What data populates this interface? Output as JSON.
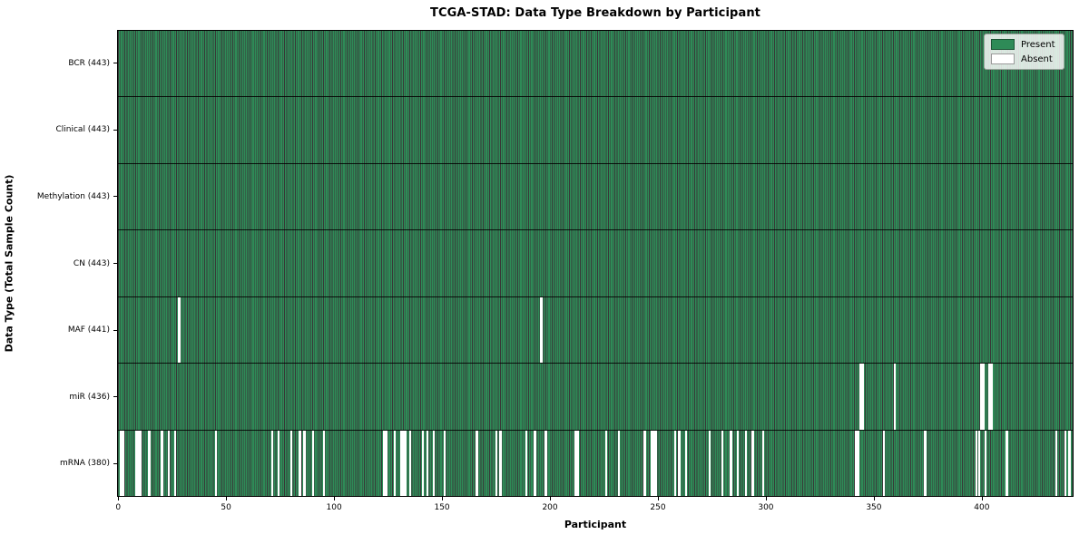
{
  "title": "TCGA-STAD: Data Type Breakdown by Participant",
  "legend": {
    "present_label": "Present",
    "absent_label": "Absent"
  },
  "chart_data": {
    "type": "heatmap",
    "title": "TCGA-STAD: Data Type Breakdown by Participant",
    "xlabel": "Participant",
    "ylabel": "Data Type (Total Sample Count)",
    "n_participants": 443,
    "x_ticks": [
      0,
      50,
      100,
      150,
      200,
      250,
      300,
      350,
      400
    ],
    "grid": false,
    "legend_position": "upper right",
    "legend_entries": [
      {
        "label": "Present",
        "color": "#2e8b57"
      },
      {
        "label": "Absent",
        "color": "#ffffff"
      }
    ],
    "colors": {
      "present": "#2e8b57",
      "absent": "#ffffff",
      "bar_edge": "rgba(0,0,0,0.78)"
    },
    "rows": [
      {
        "name": "BCR",
        "label": "BCR (443)",
        "total": 443,
        "absent": []
      },
      {
        "name": "Clinical",
        "label": "Clinical (443)",
        "total": 443,
        "absent": []
      },
      {
        "name": "Methylation",
        "label": "Methylation (443)",
        "total": 443,
        "absent": []
      },
      {
        "name": "CN",
        "label": "CN (443)",
        "total": 443,
        "absent": []
      },
      {
        "name": "MAF",
        "label": "MAF (441)",
        "total": 441,
        "absent": [
          28,
          196
        ]
      },
      {
        "name": "miR",
        "label": "miR (436)",
        "total": 436,
        "absent": [
          344,
          345,
          360,
          400,
          401,
          404,
          405
        ]
      },
      {
        "name": "mRNA",
        "label": "mRNA (380)",
        "total": 380,
        "absent": [
          1,
          2,
          8,
          9,
          10,
          14,
          20,
          23,
          26,
          45,
          71,
          74,
          80,
          84,
          86,
          90,
          95,
          123,
          124,
          128,
          131,
          132,
          133,
          135,
          141,
          143,
          146,
          151,
          166,
          175,
          177,
          189,
          193,
          198,
          212,
          213,
          226,
          232,
          244,
          247,
          248,
          249,
          258,
          260,
          263,
          274,
          280,
          284,
          287,
          291,
          294,
          299,
          342,
          343,
          355,
          374,
          398,
          399,
          402,
          412,
          435,
          439,
          441
        ]
      }
    ]
  }
}
